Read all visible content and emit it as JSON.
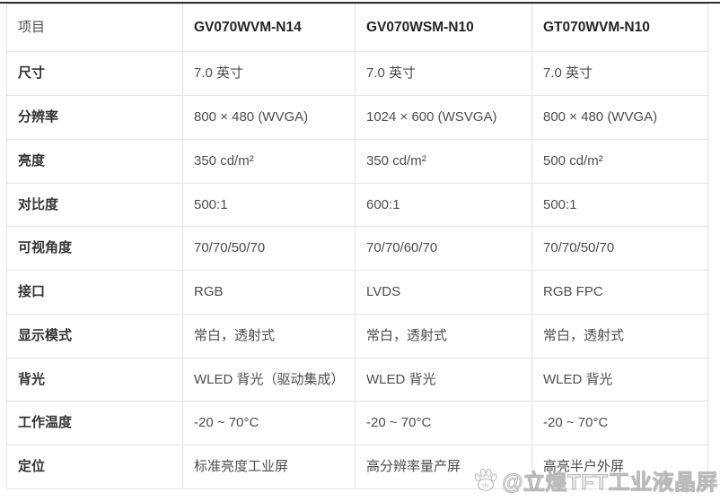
{
  "table": {
    "columns": [
      "项目",
      "GV070WVM-N14",
      "GV070WSM-N10",
      "GT070WVM-N10"
    ],
    "rows": [
      {
        "label": "尺寸",
        "values": [
          "7.0 英寸",
          "7.0 英寸",
          "7.0 英寸"
        ]
      },
      {
        "label": "分辨率",
        "values": [
          "800 × 480 (WVGA)",
          "1024 × 600 (WSVGA)",
          "800 × 480 (WVGA)"
        ]
      },
      {
        "label": "亮度",
        "values": [
          "350 cd/m²",
          "350 cd/m²",
          "500 cd/m²"
        ]
      },
      {
        "label": "对比度",
        "values": [
          "500:1",
          "600:1",
          "500:1"
        ]
      },
      {
        "label": "可视角度",
        "values": [
          "70/70/50/70",
          "70/70/60/70",
          "70/70/50/70"
        ]
      },
      {
        "label": "接口",
        "values": [
          "RGB",
          "LVDS",
          "RGB FPC"
        ]
      },
      {
        "label": "显示模式",
        "values": [
          "常白，透射式",
          "常白，透射式",
          "常白，透射式"
        ]
      },
      {
        "label": "背光",
        "values": [
          "WLED 背光（驱动集成）",
          "WLED 背光",
          "WLED 背光"
        ]
      },
      {
        "label": "工作温度",
        "values": [
          "-20 ~ 70°C",
          "-20 ~ 70°C",
          "-20 ~ 70°C"
        ]
      },
      {
        "label": "定位",
        "values": [
          "标准亮度工业屏",
          "高分辨率量产屏",
          "高亮半户外屏"
        ]
      }
    ]
  },
  "watermark": {
    "text": "@立煌TFT工业液晶屏",
    "icon": "baidu-paw-icon"
  },
  "colors": {
    "top_rule": "#2e2e2e",
    "grid_border": "#e3e3e3",
    "header_text": "#262626",
    "label_text": "#343434",
    "value_text": "#4d4d4d",
    "watermark_stroke": "#b3b3b3"
  }
}
